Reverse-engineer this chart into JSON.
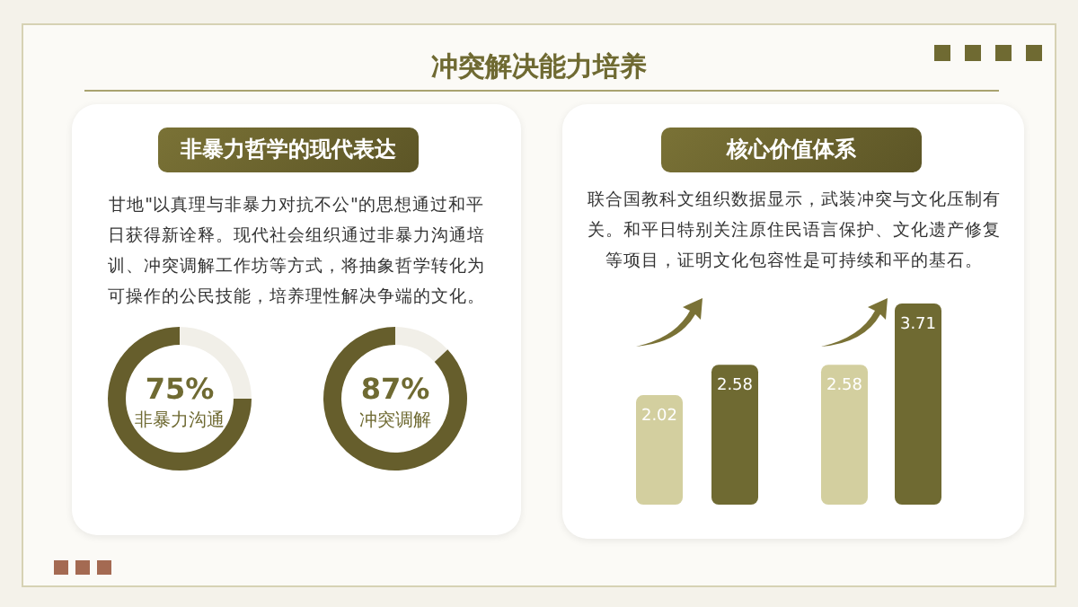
{
  "chart_data": [
    {
      "type": "other",
      "title": "冲突解决能力培养"
    },
    {
      "type": "other",
      "title": "非暴力哲学的现代表达",
      "annotations": [
        "甘地\"以真理与非暴力对抗不公\"的思想通过和平日获得新诠释。现代社会组织通过非暴力沟通培训、冲突调解工作坊等方式，将抽象哲学转化为可操作的公民技能，培养理性解决争端的文化。"
      ]
    },
    {
      "type": "donut",
      "categories": [
        "非暴力沟通",
        null
      ],
      "values": [
        75,
        25
      ],
      "colors": [
        "#665e2c",
        "#f1efe8"
      ],
      "value_labels": [
        "75%",
        null
      ]
    },
    {
      "type": "donut",
      "categories": [
        "冲突调解",
        null
      ],
      "values": [
        87,
        13
      ],
      "colors": [
        "#665e2c",
        "#f1efe8"
      ],
      "value_labels": [
        "87%",
        null
      ]
    },
    {
      "type": "bar",
      "title": "核心价值体系",
      "annotations": [
        "联合国教科文组织数据显示，武装冲突与文化压制有关。和平日特别关注原住民语言保护、文化遗产修复等项目，证明文化包容性是可持续和平的基石。"
      ],
      "categories": [
        null,
        null,
        null,
        null
      ],
      "values": [
        2.02,
        2.58,
        2.58,
        3.71
      ],
      "colors": [
        "#d3cf9f",
        "#6f6a32",
        "#d3cf9f",
        "#6f6a32"
      ],
      "data_labels": true
    }
  ]
}
